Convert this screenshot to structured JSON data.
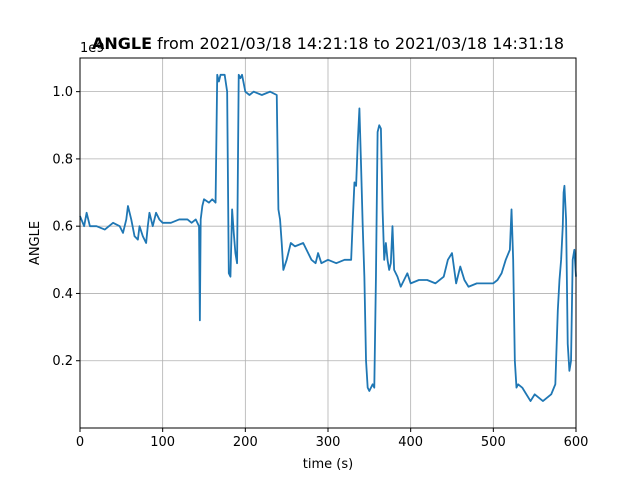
{
  "chart_data": {
    "type": "line",
    "title_bold": "ANGLE",
    "title_rest": " from 2021/03/18 14:21:18 to 2021/03/18 14:31:18",
    "xlabel": "time (s)",
    "ylabel": "ANGLE",
    "y_offset_label": "1e9",
    "xlim": [
      0,
      600
    ],
    "ylim": [
      0.0,
      1.1
    ],
    "x_ticks": [
      0,
      100,
      200,
      300,
      400,
      500,
      600
    ],
    "x_tick_labels": [
      "0",
      "100",
      "200",
      "300",
      "400",
      "500",
      "600"
    ],
    "y_ticks": [
      0.2,
      0.4,
      0.6,
      0.8,
      1.0
    ],
    "y_tick_labels": [
      "0.2",
      "0.4",
      "0.6",
      "0.8",
      "1.0"
    ],
    "grid": true,
    "color": "#1f77b4",
    "series": [
      {
        "x": [
          0,
          5,
          8,
          12,
          20,
          30,
          40,
          48,
          52,
          56,
          58,
          62,
          66,
          70,
          72,
          76,
          80,
          82,
          84,
          88,
          92,
          96,
          100,
          110,
          120,
          130,
          135,
          140,
          144,
          145,
          146,
          148,
          150,
          156,
          160,
          164,
          166,
          168,
          170,
          175,
          178,
          180,
          182,
          184,
          186,
          188,
          190,
          192,
          194,
          196,
          200,
          205,
          210,
          220,
          230,
          238,
          240,
          242,
          244,
          246,
          250,
          255,
          260,
          270,
          280,
          285,
          288,
          292,
          300,
          310,
          320,
          328,
          330,
          332,
          334,
          336,
          338,
          340,
          342,
          344,
          346,
          348,
          350,
          352,
          354,
          356,
          358,
          360,
          362,
          364,
          366,
          368,
          370,
          372,
          374,
          376,
          378,
          380,
          384,
          388,
          392,
          396,
          400,
          410,
          420,
          430,
          440,
          445,
          450,
          455,
          460,
          465,
          470,
          480,
          490,
          500,
          505,
          510,
          515,
          520,
          522,
          524,
          526,
          528,
          530,
          535,
          540,
          545,
          550,
          555,
          560,
          565,
          570,
          575,
          578,
          580,
          582,
          584,
          585,
          586,
          588,
          590,
          592,
          594,
          596,
          598,
          600
        ],
        "values": [
          0.63,
          0.6,
          0.64,
          0.6,
          0.6,
          0.59,
          0.61,
          0.6,
          0.58,
          0.62,
          0.66,
          0.62,
          0.57,
          0.56,
          0.6,
          0.57,
          0.55,
          0.6,
          0.64,
          0.6,
          0.64,
          0.62,
          0.61,
          0.61,
          0.62,
          0.62,
          0.61,
          0.62,
          0.6,
          0.32,
          0.62,
          0.66,
          0.68,
          0.67,
          0.68,
          0.67,
          1.05,
          1.03,
          1.05,
          1.05,
          1.0,
          0.46,
          0.45,
          0.65,
          0.58,
          0.52,
          0.49,
          1.05,
          1.04,
          1.05,
          1.0,
          0.99,
          1.0,
          0.99,
          1.0,
          0.99,
          0.65,
          0.62,
          0.55,
          0.47,
          0.5,
          0.55,
          0.54,
          0.55,
          0.5,
          0.49,
          0.52,
          0.49,
          0.5,
          0.49,
          0.5,
          0.5,
          0.62,
          0.73,
          0.72,
          0.85,
          0.95,
          0.78,
          0.6,
          0.45,
          0.2,
          0.12,
          0.11,
          0.12,
          0.13,
          0.12,
          0.45,
          0.88,
          0.9,
          0.89,
          0.65,
          0.5,
          0.55,
          0.5,
          0.47,
          0.49,
          0.6,
          0.47,
          0.45,
          0.42,
          0.44,
          0.46,
          0.43,
          0.44,
          0.44,
          0.43,
          0.45,
          0.5,
          0.52,
          0.43,
          0.48,
          0.44,
          0.42,
          0.43,
          0.43,
          0.43,
          0.44,
          0.46,
          0.5,
          0.53,
          0.65,
          0.5,
          0.2,
          0.12,
          0.13,
          0.12,
          0.1,
          0.08,
          0.1,
          0.09,
          0.08,
          0.09,
          0.1,
          0.13,
          0.35,
          0.44,
          0.5,
          0.6,
          0.7,
          0.72,
          0.62,
          0.25,
          0.17,
          0.2,
          0.5,
          0.53,
          0.45
        ]
      }
    ]
  }
}
